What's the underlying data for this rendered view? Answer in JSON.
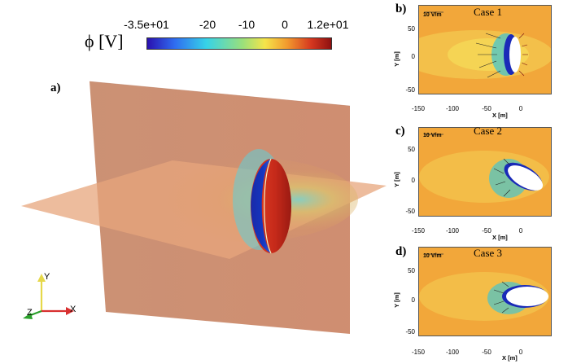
{
  "colorbar": {
    "symbol": "ϕ [V]",
    "ticks": [
      "-3.5e+01",
      "-20",
      "-10",
      "0",
      "1.2e+01"
    ],
    "colors": [
      "#2a10b0",
      "#2f6df0",
      "#36d2e8",
      "#9be07a",
      "#f5e44a",
      "#f29a2e",
      "#d6381f",
      "#8e1010"
    ]
  },
  "main_panel": {
    "label": "a)",
    "axes": {
      "y": "Y",
      "x": "X",
      "z": "Z"
    }
  },
  "subpanels": [
    {
      "label": "b)",
      "title": "Case 1",
      "scale": "10 V/m",
      "yticks": [
        "50",
        "0",
        "-50"
      ],
      "xticks": [
        "-150",
        "-100",
        "-50",
        "0"
      ],
      "xlabel": "X [m]",
      "ylabel": "Y [m]"
    },
    {
      "label": "c)",
      "title": "Case 2",
      "scale": "10 V/m",
      "yticks": [
        "50",
        "0",
        "-50"
      ],
      "xticks": [
        "-150",
        "-100",
        "-50",
        "0"
      ],
      "xlabel": "X [m]",
      "ylabel": "Y [m]"
    },
    {
      "label": "d)",
      "title": "Case 3",
      "scale": "10 V/m",
      "yticks": [
        "50",
        "0",
        "-50"
      ],
      "xticks": [
        "-150",
        "-100",
        "-50",
        "0"
      ],
      "xlabel": "X [m]",
      "ylabel": "Y [m]"
    }
  ]
}
